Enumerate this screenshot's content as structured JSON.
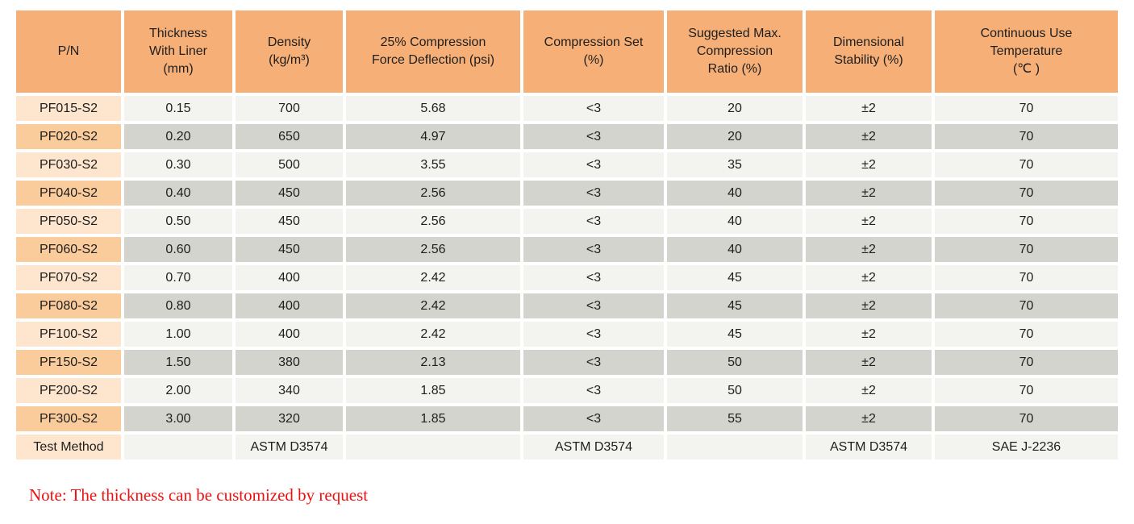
{
  "table": {
    "columns": [
      {
        "id": "pn",
        "lines": [
          "P/N"
        ]
      },
      {
        "id": "thickness",
        "lines": [
          "Thickness",
          "With Liner",
          "(mm)"
        ]
      },
      {
        "id": "density",
        "lines": [
          "Density",
          "(kg/m³)"
        ]
      },
      {
        "id": "compression-force-deflection",
        "lines": [
          "25% Compression",
          "Force Deflection (psi)"
        ]
      },
      {
        "id": "compression-set",
        "lines": [
          "Compression Set",
          "(%)"
        ]
      },
      {
        "id": "max-compression-ratio",
        "lines": [
          "Suggested Max.",
          "Compression",
          "Ratio (%)"
        ]
      },
      {
        "id": "dimensional-stability",
        "lines": [
          "Dimensional",
          "Stability (%)"
        ]
      },
      {
        "id": "continuous-use-temperature",
        "lines": [
          "Continuous Use",
          "Temperature",
          "(℃ )"
        ]
      }
    ],
    "rows": [
      {
        "pn": "PF015-S2",
        "values": [
          "0.15",
          "700",
          "5.68",
          "<3",
          "20",
          "±2",
          "70"
        ]
      },
      {
        "pn": "PF020-S2",
        "values": [
          "0.20",
          "650",
          "4.97",
          "<3",
          "20",
          "±2",
          "70"
        ]
      },
      {
        "pn": "PF030-S2",
        "values": [
          "0.30",
          "500",
          "3.55",
          "<3",
          "35",
          "±2",
          "70"
        ]
      },
      {
        "pn": "PF040-S2",
        "values": [
          "0.40",
          "450",
          "2.56",
          "<3",
          "40",
          "±2",
          "70"
        ]
      },
      {
        "pn": "PF050-S2",
        "values": [
          "0.50",
          "450",
          "2.56",
          "<3",
          "40",
          "±2",
          "70"
        ]
      },
      {
        "pn": "PF060-S2",
        "values": [
          "0.60",
          "450",
          "2.56",
          "<3",
          "40",
          "±2",
          "70"
        ]
      },
      {
        "pn": "PF070-S2",
        "values": [
          "0.70",
          "400",
          "2.42",
          "<3",
          "45",
          "±2",
          "70"
        ]
      },
      {
        "pn": "PF080-S2",
        "values": [
          "0.80",
          "400",
          "2.42",
          "<3",
          "45",
          "±2",
          "70"
        ]
      },
      {
        "pn": "PF100-S2",
        "values": [
          "1.00",
          "400",
          "2.42",
          "<3",
          "45",
          "±2",
          "70"
        ]
      },
      {
        "pn": "PF150-S2",
        "values": [
          "1.50",
          "380",
          "2.13",
          "<3",
          "50",
          "±2",
          "70"
        ]
      },
      {
        "pn": "PF200-S2",
        "values": [
          "2.00",
          "340",
          "1.85",
          "<3",
          "50",
          "±2",
          "70"
        ]
      },
      {
        "pn": "PF300-S2",
        "values": [
          "3.00",
          "320",
          "1.85",
          "<3",
          "55",
          "±2",
          "70"
        ]
      },
      {
        "pn": "Test Method",
        "values": [
          "",
          "ASTM D3574",
          "",
          "ASTM D3574",
          "",
          "ASTM D3574",
          "SAE J-2236"
        ]
      }
    ]
  },
  "note": "Note: The thickness can be customized by request",
  "colors": {
    "header_bg": "#f6b077",
    "pn_odd_bg": "#fde5ce",
    "pn_even_bg": "#facb9b",
    "cell_odd_bg": "#f3f3ef",
    "cell_even_bg": "#d4d4ce",
    "text": "#1e1e1e",
    "note_red": "#ef1010"
  }
}
